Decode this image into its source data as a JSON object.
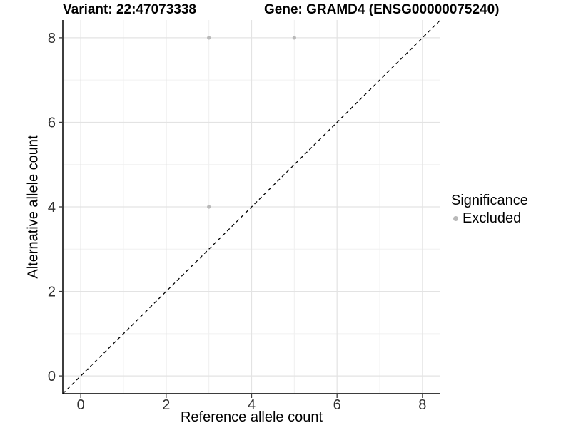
{
  "header": {
    "variant_title": "Variant: 22:47073338",
    "gene_title": "Gene: GRAMD4 (ENSG00000075240)"
  },
  "chart_data": {
    "type": "scatter",
    "title": "Variant: 22:47073338 — Gene: GRAMD4 (ENSG00000075240)",
    "xlabel": "Reference allele count",
    "ylabel": "Alternative allele count",
    "xlim": [
      -0.42,
      8.42
    ],
    "ylim": [
      -0.42,
      8.42
    ],
    "x_ticks": [
      0,
      2,
      4,
      6,
      8
    ],
    "y_ticks": [
      0,
      2,
      4,
      6,
      8
    ],
    "x_minor_ticks": [
      1,
      3,
      5,
      7
    ],
    "y_minor_ticks": [
      1,
      3,
      5,
      7
    ],
    "grid": "on",
    "series": [
      {
        "name": "Excluded",
        "points": [
          {
            "x": 3,
            "y": 8
          },
          {
            "x": 5,
            "y": 8
          },
          {
            "x": 3,
            "y": 4
          }
        ]
      }
    ],
    "reference_line": {
      "type": "identity",
      "style": "dashed",
      "from": [
        -0.42,
        -0.42
      ],
      "to": [
        8.42,
        8.42
      ]
    },
    "legend": {
      "title": "Significance",
      "position": "right",
      "entries": [
        {
          "label": "Excluded",
          "color": "#b9b9b9"
        }
      ]
    },
    "colors": {
      "point": "#b9b9b9",
      "axis_line": "#3d3d3d",
      "tick": "#3d3d3d",
      "tick_label": "#303030",
      "grid_major": "#e3e3e3",
      "grid_minor": "#f0f0f0",
      "reference_line": "#000000",
      "background": "#ffffff"
    }
  }
}
